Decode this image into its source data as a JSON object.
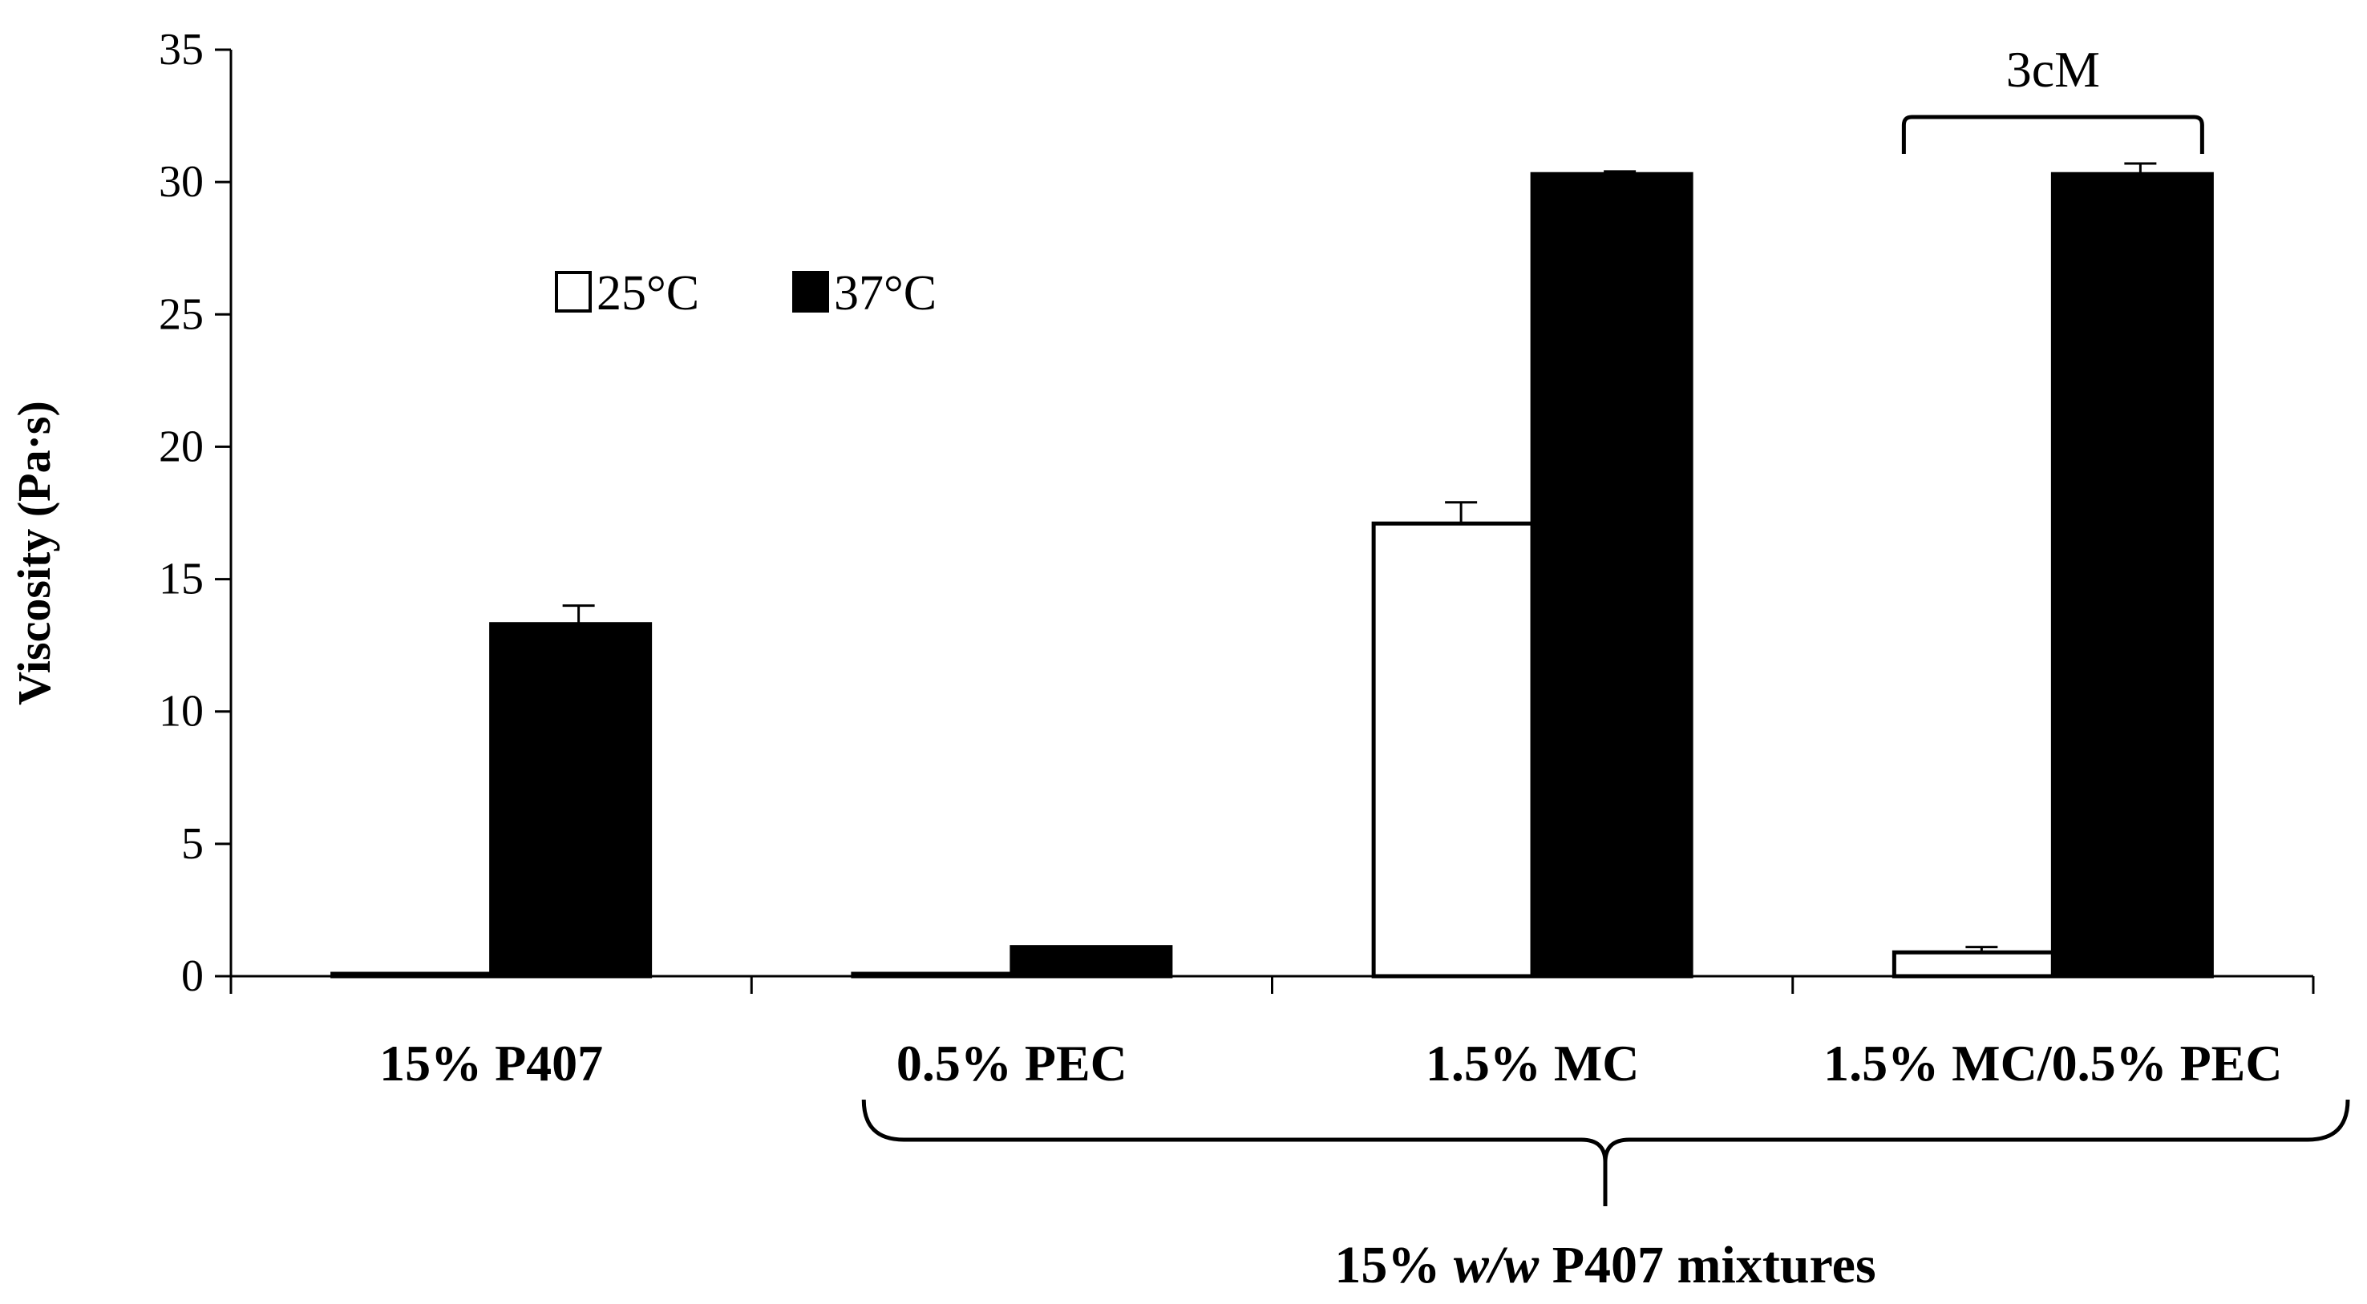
{
  "chart_data": {
    "type": "bar",
    "title": "",
    "ylabel": "Viscosity (Pa·s)",
    "xlabel": "",
    "ylim": [
      0,
      35
    ],
    "yticks": [
      0,
      5,
      10,
      15,
      20,
      25,
      30,
      35
    ],
    "categories": [
      "15% P407",
      "0.5% PEC",
      "1.5% MC",
      "1.5% MC/0.5% PEC"
    ],
    "series": [
      {
        "name": "25°C",
        "color": "#ffffff",
        "values": [
          0.05,
          0.05,
          17.1,
          0.9
        ],
        "errors": [
          0,
          0,
          0.8,
          0.2
        ]
      },
      {
        "name": "37°C",
        "color": "#000000",
        "values": [
          13.3,
          1.1,
          30.3,
          30.3
        ],
        "errors": [
          0.7,
          0,
          0.1,
          0.4
        ]
      }
    ],
    "legend": "top-left",
    "grid": false,
    "annotations": {
      "bracket_label": "3cM",
      "bracket_category": "1.5% MC/0.5% PEC",
      "group_label_parts": [
        "15% ",
        "w/w",
        " P407 mixtures"
      ],
      "group_categories": [
        "0.5% PEC",
        "1.5% MC",
        "1.5% MC/0.5% PEC"
      ]
    }
  }
}
